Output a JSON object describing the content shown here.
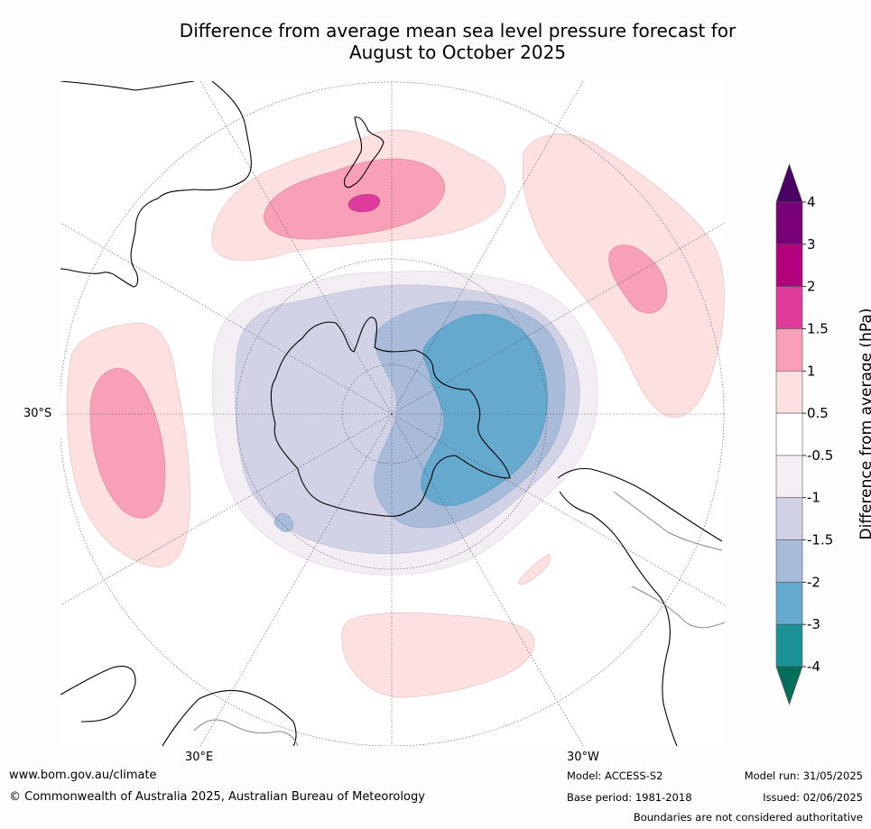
{
  "title_line1": "Difference from average mean sea level pressure forecast for",
  "title_line2": "August to October 2025",
  "map": {
    "projection": "south-polar-stereographic",
    "lat_labels": [
      "30°S"
    ],
    "lon_labels": [
      "30°E",
      "30°W"
    ]
  },
  "colorbar": {
    "title": "Difference from average (hPa)",
    "ticks": [
      "4",
      "3",
      "2",
      "1.5",
      "1",
      "0.5",
      "-0.5",
      "-1",
      "-1.5",
      "-2",
      "-3",
      "-4"
    ],
    "bins": [
      {
        "range": ">4",
        "color": "#4b0066"
      },
      {
        "range": "3 to 4",
        "color": "#7a0077"
      },
      {
        "range": "2 to 3",
        "color": "#b3007d"
      },
      {
        "range": "1.5 to 2",
        "color": "#de3b9c"
      },
      {
        "range": "1 to 1.5",
        "color": "#f9a0b9"
      },
      {
        "range": "0.5 to 1",
        "color": "#fde0e0"
      },
      {
        "range": "-0.5 to 0.5",
        "color": "#ffffff"
      },
      {
        "range": "-1 to -0.5",
        "color": "#f3edf4"
      },
      {
        "range": "-1.5 to -1",
        "color": "#d2d2e6"
      },
      {
        "range": "-2 to -1.5",
        "color": "#a8bbd9"
      },
      {
        "range": "-3 to -2",
        "color": "#66a9cf"
      },
      {
        "range": "-4 to -3",
        "color": "#1c9196"
      },
      {
        "range": "<-4",
        "color": "#026f5a"
      }
    ]
  },
  "footer": {
    "url": "www.bom.gov.au/climate",
    "copyright": "© Commonwealth of Australia 2025, Australian Bureau of Meteorology",
    "model": "Model: ACCESS-S2",
    "base_period": "Base period: 1981-2018",
    "model_run": "Model run: 31/05/2025",
    "issued": "Issued: 02/06/2025",
    "disclaimer": "Boundaries are not considered authoritative"
  }
}
